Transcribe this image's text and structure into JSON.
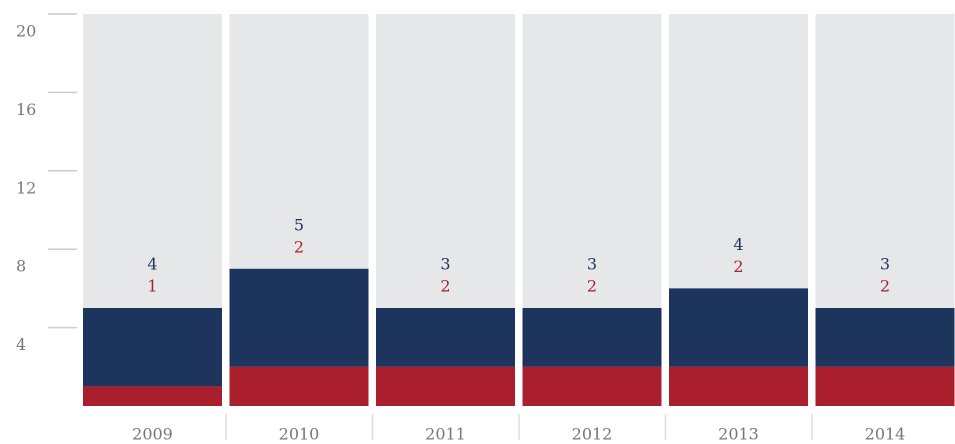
{
  "chart_data": {
    "type": "stacked_bar",
    "categories": [
      "2009",
      "2010",
      "2011",
      "2012",
      "2013",
      "2014"
    ],
    "series": [
      {
        "color": "#ab1f2d",
        "values": [
          1,
          2,
          2,
          2,
          2,
          2
        ]
      },
      {
        "color": "#1d355d",
        "values": [
          4,
          5,
          3,
          3,
          4,
          3
        ]
      }
    ],
    "background_color": "#e6e7e8",
    "ylim": [
      0,
      20
    ],
    "yticks": [
      4,
      8,
      12,
      16,
      20
    ]
  }
}
